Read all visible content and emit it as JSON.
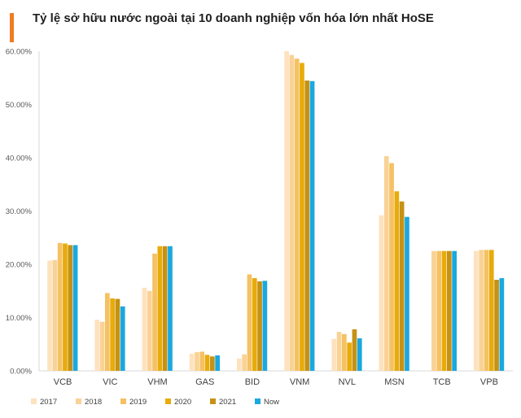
{
  "chart_data": {
    "type": "bar",
    "title": "Tỷ lệ sở hữu nước ngoài tại 10 doanh nghiệp vốn hóa lớn nhất HoSE",
    "categories": [
      "VCB",
      "VIC",
      "VHM",
      "GAS",
      "BID",
      "VNM",
      "NVL",
      "MSN",
      "TCB",
      "VPB"
    ],
    "ylim": [
      0,
      60
    ],
    "yticks": [
      "0.00%",
      "10.00%",
      "20.00%",
      "30.00%",
      "40.00%",
      "50.00%",
      "60.00%"
    ],
    "grid": false,
    "legend_position": "bottom-left",
    "series": [
      {
        "name": "2017",
        "color": "#fde2bd",
        "values": [
          20.7,
          9.6,
          15.6,
          3.2,
          2.3,
          60.0,
          6.0,
          29.2,
          null,
          22.5
        ]
      },
      {
        "name": "2018",
        "color": "#f9d295",
        "values": [
          20.8,
          9.2,
          15.0,
          3.5,
          3.1,
          59.3,
          7.3,
          40.3,
          22.5,
          22.7
        ]
      },
      {
        "name": "2019",
        "color": "#f5c162",
        "values": [
          24.0,
          14.6,
          22.0,
          3.6,
          18.1,
          58.6,
          6.9,
          39.0,
          22.5,
          22.7
        ]
      },
      {
        "name": "2020",
        "color": "#e7ab0a",
        "values": [
          23.9,
          13.6,
          23.4,
          3.0,
          17.4,
          57.8,
          5.3,
          33.7,
          22.5,
          22.7
        ]
      },
      {
        "name": "2021",
        "color": "#c69214",
        "values": [
          23.6,
          13.5,
          23.4,
          2.7,
          16.8,
          54.5,
          7.8,
          31.8,
          22.5,
          17.1
        ]
      },
      {
        "name": "Now",
        "color": "#1aa8e0",
        "values": [
          23.6,
          12.1,
          23.4,
          2.9,
          16.9,
          54.4,
          6.1,
          28.9,
          22.5,
          17.4
        ]
      }
    ]
  }
}
